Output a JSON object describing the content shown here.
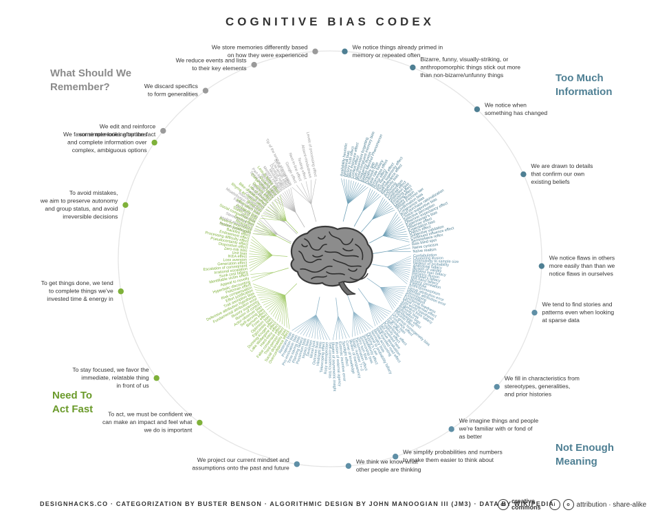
{
  "title": "COGNITIVE BIAS CODEX",
  "quadrants": {
    "remember": [
      "What Should We",
      "Remember?"
    ],
    "info": [
      "Too Much",
      "Information"
    ],
    "fast": [
      "Need To",
      "Act Fast"
    ],
    "meaning": [
      "Not Enough",
      "Meaning"
    ]
  },
  "colors": {
    "remember": "#9a9a9a",
    "info": "#4e7f93",
    "fast": "#7fb13a",
    "meaning": "#5f8fa6",
    "fan_remember": "#b5b5b5",
    "fan_info": "#6fa0b7",
    "fan_fast": "#a5cc6e",
    "fan_meaning": "#8fb5c9"
  },
  "groups": [
    {
      "lines": [
        "We store memories differently based",
        "on how they were experienced"
      ],
      "color": "remember",
      "biases": [
        "Tip of the tongue phenomenon",
        "Google effect",
        "Next-in-line effect",
        "Testing effect",
        "Absent-mindedness",
        "Levels of processing effect"
      ]
    },
    {
      "lines": [
        "We reduce events and lists",
        "to their key elements"
      ],
      "color": "remember",
      "biases": [
        "Suffix effect",
        "Serial position effect",
        "Part-list cueing effect",
        "Recency effect",
        "Primacy effect",
        "Memory inhibition",
        "Modality effect",
        "Duration neglect",
        "List-length effect",
        "Serial recall effect"
      ]
    },
    {
      "lines": [
        "We discard specifics",
        "to form generalities"
      ],
      "color": "remember",
      "biases": [
        "Misattribution of memory",
        "Source confusion",
        "Cryptomnesia",
        "False memory",
        "Suggestibility",
        "Spacing effect"
      ]
    },
    {
      "lines": [
        "We edit and reinforce",
        "some memories after the fact"
      ],
      "color": "remember",
      "biases": [
        "Implicit stereotypes",
        "Implicit associations",
        "Stereotypical bias",
        "Prejudice",
        "Negativity bias",
        "Fading affect bias"
      ]
    },
    {
      "lines": [
        "We notice things already primed in",
        "memory or repeated often"
      ],
      "color": "info",
      "biases": [
        "Availability heuristic",
        "Attentional bias",
        "Illusory truth effect",
        "Mere exposure effect",
        "Context effect",
        "Cue-dependent forgetting",
        "Mood-congruent memory bias",
        "Frequency illusion",
        "Baader-Meinhof Phenomenon",
        "Empathy gap",
        "Omission bias",
        "Base rate fallacy"
      ]
    },
    {
      "lines": [
        "Bizarre, funny, visually-striking, or",
        "anthropomorphic things stick out more",
        "than non-bizarre/unfunny things"
      ],
      "color": "info",
      "biases": [
        "Bizarreness effect",
        "Humor effect",
        "Von Restorff effect",
        "Picture superiority effect",
        "Self-relevance effect",
        "Negativity bias"
      ]
    },
    {
      "lines": [
        "We notice when",
        "something has changed"
      ],
      "color": "info",
      "biases": [
        "Anchoring",
        "Conservatism",
        "Contrast effect",
        "Distinction bias",
        "Focusing effect",
        "Framing effect",
        "Money illusion",
        "Weber-Fechner law"
      ]
    },
    {
      "lines": [
        "We are drawn to details",
        "that confirm our own",
        "existing beliefs"
      ],
      "color": "info",
      "biases": [
        "Confirmation bias",
        "Congruence bias",
        "Post-purchase rationalization",
        "Choice-supportive bias",
        "Selective perception",
        "Observer-expectancy effect",
        "Experimenter's bias",
        "Observer effect",
        "Expectation bias",
        "Ostrich effect",
        "Subjective validation",
        "Continued influence effect",
        "Semmelweis reflex"
      ]
    },
    {
      "lines": [
        "We notice flaws in others",
        "more easily than than we",
        "notice flaws in ourselves"
      ],
      "color": "info",
      "biases": [
        "Bias blind spot",
        "Naïve cynicism",
        "Naïve realism"
      ]
    },
    {
      "lines": [
        "We tend to find stories and",
        "patterns even when looking",
        "at sparse data"
      ],
      "color": "meaning",
      "biases": [
        "Confabulation",
        "Clustering illusion",
        "Insensitivity to sample size",
        "Neglect of probability",
        "Anecdotal fallacy",
        "Illusion of validity",
        "Masked man fallacy",
        "Recency illusion",
        "Gambler's fallacy",
        "Hot-hand fallacy",
        "Illusory correlation",
        "Pareidolia",
        "Anthropomorphism"
      ]
    },
    {
      "lines": [
        "We fill in characteristics from",
        "stereotypes, generalities,",
        "and prior histories"
      ],
      "color": "meaning",
      "biases": [
        "Group attribution error",
        "Ultimate attribution error",
        "Stereotyping",
        "Essentialism",
        "Functional fixedness",
        "Moral credential effect",
        "Just-world hypothesis",
        "Argument from fallacy",
        "Authority bias",
        "Automation bias",
        "Bandwagon effect",
        "Placebo effect"
      ]
    },
    {
      "lines": [
        "We imagine things and people",
        "we're familiar with or fond of",
        "as better"
      ],
      "color": "meaning",
      "biases": [
        "Out-group homogeneity bias",
        "Cross-race effect",
        "In-group bias",
        "Halo effect",
        "Cheerleader effect",
        "Positivity effect",
        "Not invented here",
        "Reactive devaluation",
        "Well-traveled road effect"
      ]
    },
    {
      "lines": [
        "We simplify probabilities and numbers",
        "to make them easier to think about"
      ],
      "color": "meaning",
      "biases": [
        "Mental accounting",
        "Normalcy bias",
        "Appeal to probability fallacy",
        "Murphy's Law",
        "Subadditivity effect",
        "Survivorship bias",
        "Zero sum bias",
        "Denomination effect",
        "Magic number 7+-2"
      ]
    },
    {
      "lines": [
        "We think we know what",
        "other people are thinking"
      ],
      "color": "meaning",
      "biases": [
        "Illusion of transparency",
        "Curse of knowledge",
        "Spotlight effect",
        "Extrinsic incentive error",
        "Illusion of external agency",
        "Illusion of asymmetric insight"
      ]
    },
    {
      "lines": [
        "We project our current mindset and",
        "assumptions onto the past and future"
      ],
      "color": "meaning",
      "biases": [
        "Self-consistency bias",
        "Rosy retrospection",
        "Telescoping effect",
        "Hindsight bias",
        "Outcome bias",
        "Moral luck",
        "Declinism",
        "Impact bias",
        "Pessimism bias",
        "Planning fallacy",
        "Time-saving bias",
        "Pro-innovation bias",
        "Projection bias",
        "Restraint bias"
      ]
    },
    {
      "lines": [
        "To act, we must be confident we",
        "can make an impact and feel what",
        "we do is important"
      ],
      "color": "fast",
      "biases": [
        "Overconfidence effect",
        "Social desirability bias",
        "Third-person effect",
        "False consensus effect",
        "Hard-easy effect",
        "Lake Wobegone effect",
        "Dunning-Kruger effect",
        "Egocentric bias",
        "Optimism bias",
        "Forer effect",
        "Barnum effect",
        "Self-serving bias",
        "Actor-observer bias",
        "Illusion of control",
        "Illusory superiority",
        "Fundamental attribution error",
        "Defensive attribution hypothesis",
        "Trait ascription bias",
        "Effort justification",
        "Risk compensation",
        "Peltzman effect"
      ]
    },
    {
      "lines": [
        "To stay focused, we favor the",
        "immediate, relatable thing",
        "in front of us"
      ],
      "color": "fast",
      "biases": [
        "Hyperbolic discounting",
        "Appeal to novelty",
        "Identifiable victim effect"
      ]
    },
    {
      "lines": [
        "To get things done, we tend",
        "to complete things we've",
        "invested time & energy in"
      ],
      "color": "fast",
      "biases": [
        "Sunk cost fallacy",
        "Irrational escalation",
        "Escalation of commitment",
        "Generation effect",
        "Loss aversion",
        "IKEA effect",
        "Unit bias",
        "Zero-risk bias",
        "Disposition effect",
        "Pseudocertainty effect",
        "Processing difficulty effect",
        "Endowment effect",
        "Backfire effect"
      ]
    },
    {
      "lines": [
        "To avoid mistakes,",
        "we aim to preserve autonomy",
        "and group status, and avoid",
        "irreversible decisions"
      ],
      "color": "fast",
      "biases": [
        "System justification",
        "Reverse psychology",
        "Reactance",
        "Decoy effect",
        "Social comparison bias",
        "Status quo bias"
      ]
    },
    {
      "lines": [
        "We favor simple-looking options",
        "and complete information over",
        "complex, ambiguous options"
      ],
      "color": "fast",
      "biases": [
        "Ambiguity bias",
        "Information bias",
        "Belief bias",
        "Rhyme as reason effect",
        "Bike-shedding effect",
        "Law of Triviality",
        "Delmore effect",
        "Conjunction fallacy",
        "Occam's razor",
        "Less-is-better effect"
      ]
    }
  ],
  "footer": "DESIGNHACKS.CO  ·  CATEGORIZATION BY BUSTER BENSON  ·  ALGORITHMIC DESIGN BY JOHN MANOOGIAN III (JM3)  ·  DATA BY WIKIPEDIA",
  "license": {
    "cc": "cc",
    "word1": "creative",
    "word2": "commons",
    "by": "i",
    "sa": "o",
    "text": "attribution · share-alike"
  }
}
